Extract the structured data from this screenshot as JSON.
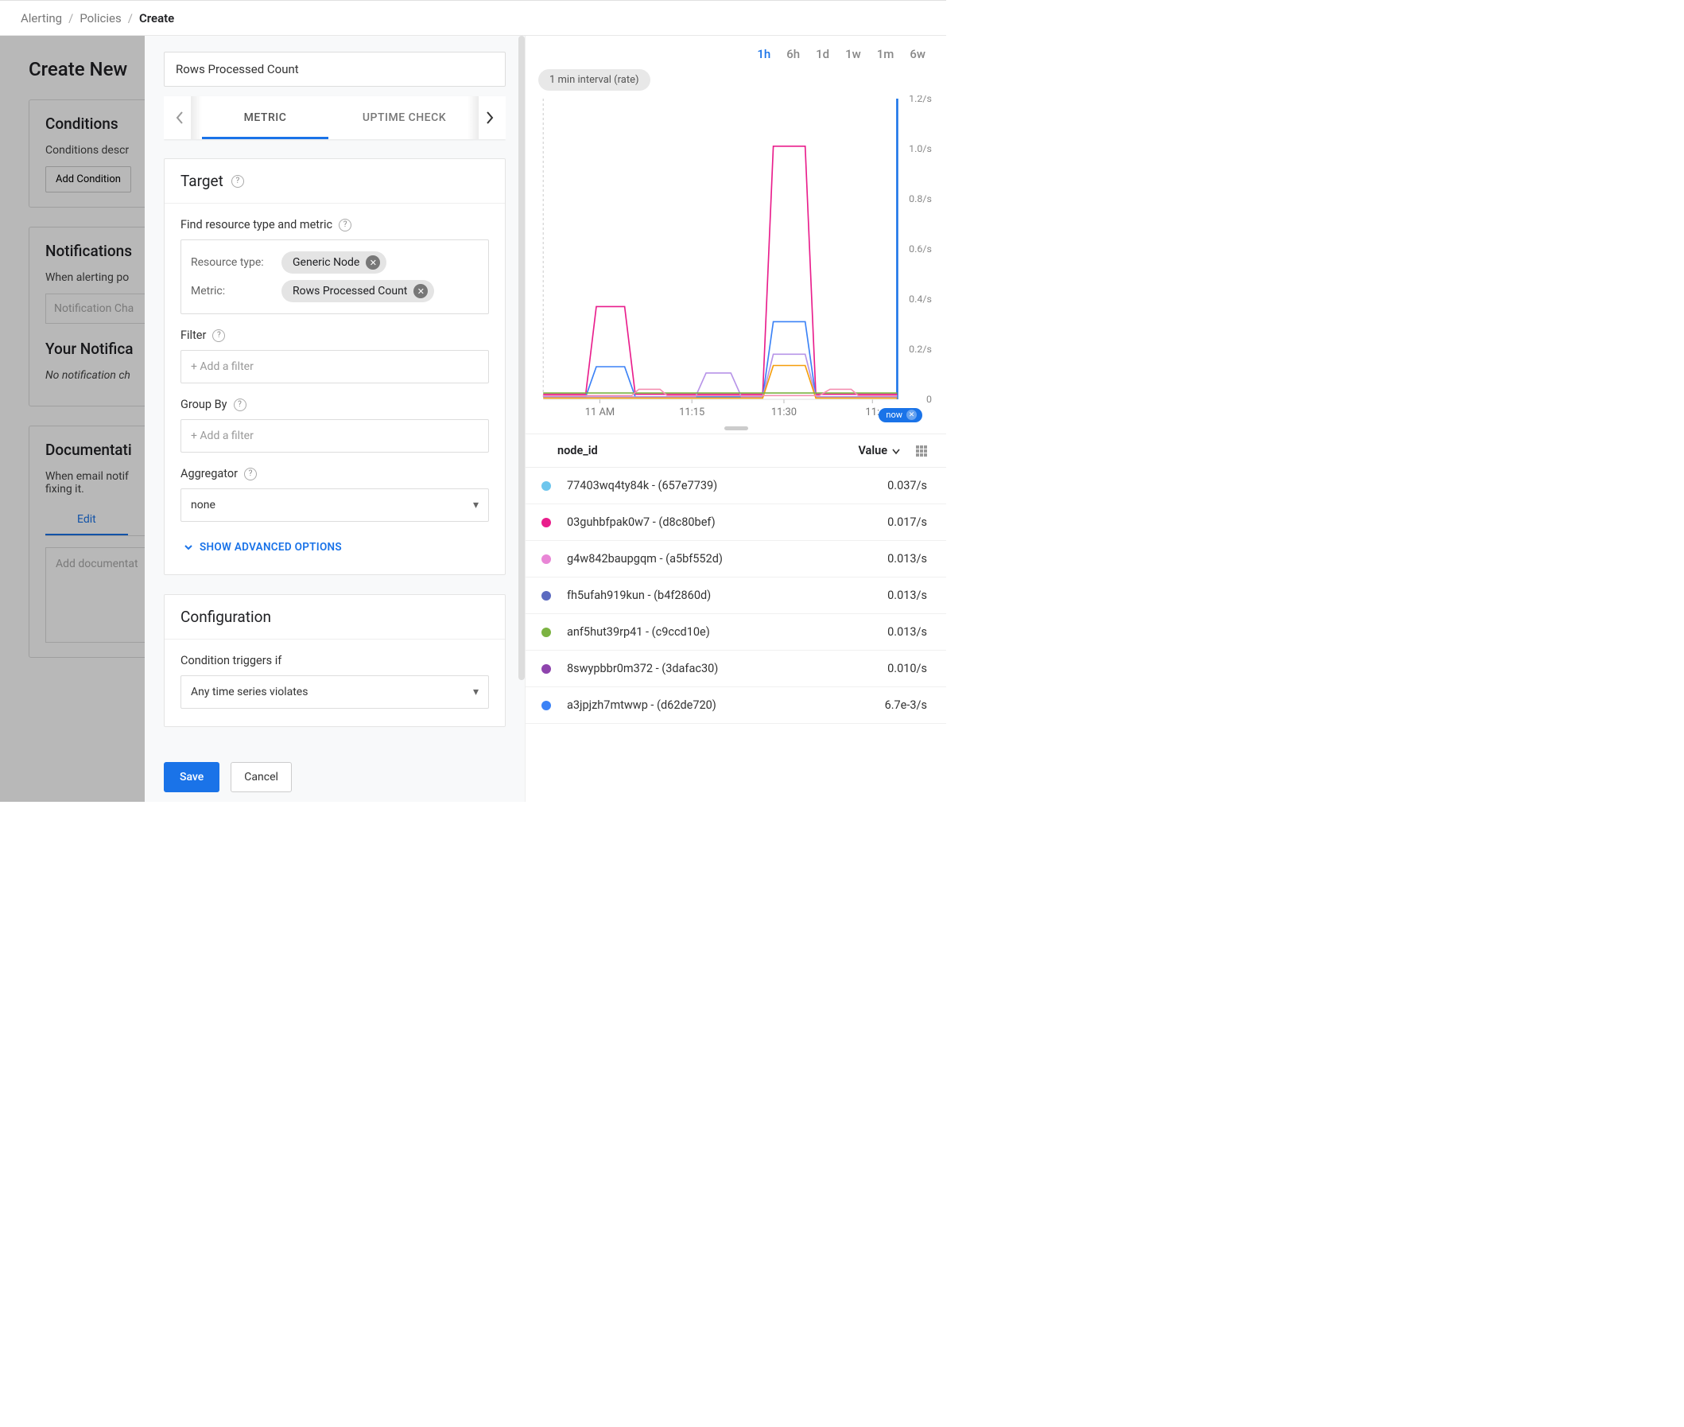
{
  "breadcrumb": {
    "alerting": "Alerting",
    "policies": "Policies",
    "create": "Create"
  },
  "background": {
    "page_title": "Create New",
    "conditions": {
      "heading": "Conditions",
      "desc": "Conditions descr",
      "add_btn": "Add Condition"
    },
    "notifications": {
      "heading": "Notifications",
      "when": "When alerting po",
      "placeholder": "Notification Cha",
      "your_heading": "Your Notifica",
      "none": "No notification ch"
    },
    "docs": {
      "heading": "Documentati",
      "desc1": "When email notif",
      "desc2": "fixing it.",
      "tab_edit": "Edit",
      "placeholder": "Add documentat"
    }
  },
  "modal": {
    "name_value": "Rows Processed Count",
    "tabs": {
      "metric": "METRIC",
      "uptime": "UPTIME CHECK"
    },
    "target": {
      "heading": "Target",
      "find_label": "Find resource type and metric",
      "resource_type_label": "Resource type:",
      "resource_type_value": "Generic Node",
      "metric_label": "Metric:",
      "metric_value": "Rows Processed Count",
      "filter_label": "Filter",
      "filter_placeholder": "+ Add a filter",
      "groupby_label": "Group By",
      "groupby_placeholder": "+ Add a filter",
      "aggregator_label": "Aggregator",
      "aggregator_value": "none",
      "advanced": "SHOW ADVANCED OPTIONS"
    },
    "config": {
      "heading": "Configuration",
      "triggers_label": "Condition triggers if",
      "triggers_value": "Any time series violates"
    },
    "footer": {
      "save": "Save",
      "cancel": "Cancel"
    }
  },
  "chart": {
    "time_ranges": [
      "1h",
      "6h",
      "1d",
      "1w",
      "1m",
      "6w"
    ],
    "active_range": "1h",
    "interval_pill": "1 min interval (rate)",
    "y_axis": {
      "max": 1.2,
      "ticks": [
        {
          "v": 1.2,
          "label": "1.2/s"
        },
        {
          "v": 1.0,
          "label": "1.0/s"
        },
        {
          "v": 0.8,
          "label": "0.8/s"
        },
        {
          "v": 0.6,
          "label": "0.6/s"
        },
        {
          "v": 0.4,
          "label": "0.4/s"
        },
        {
          "v": 0.2,
          "label": "0.2/s"
        },
        {
          "v": 0.0,
          "label": "0"
        }
      ]
    },
    "x_axis": {
      "labels": [
        {
          "pos": 0.16,
          "label": "11 AM"
        },
        {
          "pos": 0.42,
          "label": "11:15"
        },
        {
          "pos": 0.68,
          "label": "11:30"
        },
        {
          "pos": 0.93,
          "label": "11:"
        }
      ]
    },
    "now_label": "now",
    "colors": {
      "magenta": "#e91e8c",
      "blue": "#3b82f6",
      "lavender": "#b794e8",
      "orange": "#f59e0b",
      "green": "#7cb342",
      "lightpink": "#f48fb1"
    },
    "series": [
      {
        "color": "#e91e8c",
        "points": [
          [
            0,
            0.02
          ],
          [
            0.12,
            0.02
          ],
          [
            0.15,
            0.37
          ],
          [
            0.23,
            0.37
          ],
          [
            0.26,
            0.02
          ],
          [
            0.62,
            0.02
          ],
          [
            0.65,
            1.01
          ],
          [
            0.74,
            1.01
          ],
          [
            0.77,
            0.02
          ],
          [
            1,
            0.02
          ]
        ]
      },
      {
        "color": "#3b82f6",
        "points": [
          [
            0,
            0.01
          ],
          [
            0.12,
            0.01
          ],
          [
            0.15,
            0.13
          ],
          [
            0.23,
            0.13
          ],
          [
            0.26,
            0.01
          ],
          [
            0.62,
            0.01
          ],
          [
            0.65,
            0.31
          ],
          [
            0.74,
            0.31
          ],
          [
            0.77,
            0.01
          ],
          [
            1,
            0.01
          ]
        ]
      },
      {
        "color": "#b794e8",
        "points": [
          [
            0,
            0.01
          ],
          [
            0.43,
            0.01
          ],
          [
            0.46,
            0.105
          ],
          [
            0.53,
            0.105
          ],
          [
            0.56,
            0.01
          ],
          [
            0.62,
            0.01
          ],
          [
            0.65,
            0.18
          ],
          [
            0.74,
            0.18
          ],
          [
            0.77,
            0.01
          ],
          [
            1,
            0.01
          ]
        ]
      },
      {
        "color": "#f59e0b",
        "points": [
          [
            0,
            0.005
          ],
          [
            0.62,
            0.005
          ],
          [
            0.65,
            0.135
          ],
          [
            0.74,
            0.135
          ],
          [
            0.77,
            0.005
          ],
          [
            1,
            0.005
          ]
        ]
      },
      {
        "color": "#7cb342",
        "points": [
          [
            0,
            0.025
          ],
          [
            1,
            0.025
          ]
        ]
      },
      {
        "color": "#f48fb1",
        "points": [
          [
            0,
            0.015
          ],
          [
            0.25,
            0.015
          ],
          [
            0.27,
            0.04
          ],
          [
            0.33,
            0.04
          ],
          [
            0.35,
            0.015
          ],
          [
            0.78,
            0.015
          ],
          [
            0.81,
            0.04
          ],
          [
            0.87,
            0.04
          ],
          [
            0.89,
            0.015
          ],
          [
            1,
            0.015
          ]
        ]
      }
    ]
  },
  "legend": {
    "col1": "node_id",
    "col2": "Value",
    "rows": [
      {
        "color": "#6ec6ed",
        "label": "77403wq4ty84k - (657e7739)",
        "value": "0.037/s"
      },
      {
        "color": "#e91e8c",
        "label": "03guhbfpak0w7 - (d8c80bef)",
        "value": "0.017/s"
      },
      {
        "color": "#e986d6",
        "label": "g4w842baupgqm - (a5bf552d)",
        "value": "0.013/s"
      },
      {
        "color": "#5c6bc0",
        "label": "fh5ufah919kun - (b4f2860d)",
        "value": "0.013/s"
      },
      {
        "color": "#7cb342",
        "label": "anf5hut39rp41 - (c9ccd10e)",
        "value": "0.013/s"
      },
      {
        "color": "#8e44ad",
        "label": "8swypbbr0m372 - (3dafac30)",
        "value": "0.010/s"
      },
      {
        "color": "#3b82f6",
        "label": "a3jpjzh7mtwwp - (d62de720)",
        "value": "6.7e-3/s"
      }
    ]
  }
}
